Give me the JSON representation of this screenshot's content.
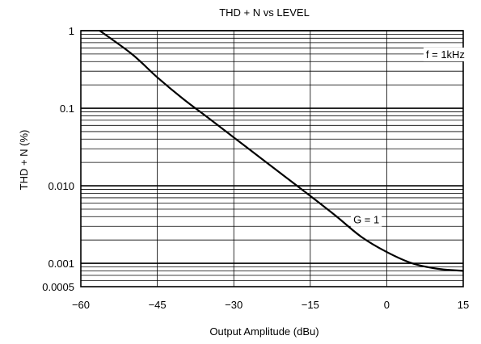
{
  "chart_data": {
    "type": "line",
    "title": "THD + N vs LEVEL",
    "xlabel": "Output Amplitude (dBu)",
    "ylabel": "THD + N (%)",
    "xlim": [
      -60,
      15
    ],
    "ylim": [
      0.0005,
      1
    ],
    "x_scale": "linear",
    "y_scale": "log",
    "grid": true,
    "x_ticks": [
      -60,
      -45,
      -30,
      -15,
      0,
      15
    ],
    "x_tick_labels": [
      "−60",
      "−45",
      "−30",
      "−15",
      "0",
      "15"
    ],
    "y_ticks": [
      1,
      0.1,
      0.01,
      0.001,
      0.0005
    ],
    "y_tick_labels": [
      "1",
      "0.1",
      "0.010",
      "0.001",
      "0.0005"
    ],
    "annotations": [
      {
        "text": "f = 1kHz",
        "x": 11.5,
        "y": 0.5
      },
      {
        "text": "G = 1",
        "x": -4,
        "y": 0.0037
      }
    ],
    "series": [
      {
        "name": "G = 1",
        "x": [
          -56.3,
          -50,
          -45,
          -40,
          -35,
          -30,
          -25,
          -20,
          -15,
          -10,
          -5,
          0,
          5,
          10,
          15
        ],
        "y": [
          1,
          0.5,
          0.25,
          0.133,
          0.075,
          0.042,
          0.0235,
          0.0132,
          0.0074,
          0.0041,
          0.0022,
          0.0014,
          0.001,
          0.00085,
          0.0008
        ]
      }
    ],
    "colors": {
      "line": "#000000",
      "grid": "#000000",
      "background": "#ffffff"
    }
  }
}
